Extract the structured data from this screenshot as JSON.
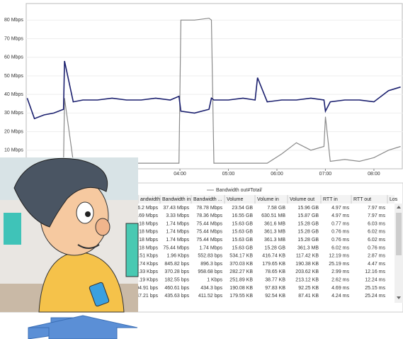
{
  "chart": {
    "ylim": [
      0,
      88.9
    ],
    "xlim": [
      0.83,
      8.6
    ],
    "yticks": [
      {
        "value": 10,
        "label": "10 Mbps"
      },
      {
        "value": 20,
        "label": "20 Mbps"
      },
      {
        "value": 30,
        "label": "30 Mbps"
      },
      {
        "value": 40,
        "label": "40 Mbps"
      },
      {
        "value": 50,
        "label": "50 Mbps"
      },
      {
        "value": 60,
        "label": "60 Mbps"
      },
      {
        "value": 70,
        "label": "70 Mbps"
      },
      {
        "value": 80,
        "label": "80 Mbps"
      }
    ],
    "xticks": [
      {
        "value": 4,
        "label": "04:00"
      },
      {
        "value": 5,
        "label": "05:00"
      },
      {
        "value": 6,
        "label": "06:00"
      },
      {
        "value": 7,
        "label": "07:00"
      },
      {
        "value": 8,
        "label": "08:00"
      }
    ],
    "x": [
      0.85,
      1.0,
      1.2,
      1.4,
      1.6,
      1.62,
      1.8,
      2.0,
      2.3,
      2.6,
      2.9,
      3.2,
      3.5,
      3.8,
      3.98,
      4.02,
      4.3,
      4.6,
      4.65,
      4.7,
      5.0,
      5.3,
      5.55,
      5.6,
      5.8,
      6.1,
      6.4,
      6.7,
      6.97,
      7.0,
      7.1,
      7.4,
      7.7,
      8.0,
      8.3,
      8.55
    ],
    "series": [
      {
        "color": "#1a1f6e",
        "values": [
          38,
          27,
          29,
          30,
          32,
          58,
          36,
          37,
          37,
          38,
          37,
          37,
          38,
          37,
          39,
          31,
          30,
          32,
          38,
          37,
          37,
          38,
          37,
          49,
          36,
          37,
          37,
          38,
          37,
          31,
          36,
          37,
          37,
          36,
          42,
          44
        ]
      },
      {
        "name": "Bandwidth out#Total/",
        "color": "#8a8a8a",
        "values": [
          2,
          2,
          3,
          3,
          3,
          38,
          4,
          3,
          3,
          3,
          3,
          3,
          3,
          3,
          3,
          80,
          80,
          81,
          80,
          3,
          3,
          3,
          3,
          3,
          3,
          8,
          14,
          10,
          12,
          28,
          4,
          5,
          4,
          6,
          10,
          12
        ]
      }
    ]
  },
  "table": {
    "columns": [
      "andwidth",
      "Bandwidth in",
      "Bandwidth ...",
      "Volume",
      "Volume in",
      "Volume out",
      "RTT in",
      "RTT out",
      "Los"
    ],
    "rows": [
      [
        "16.2 Mbps",
        "37.43 Mbps",
        "78.78 Mbps",
        "23.54 GB",
        "7.58 GB",
        "15.96 GB",
        "4.97 ms",
        "7.97 ms"
      ],
      [
        "1.69 Mbps",
        "3.33 Mbps",
        "78.36 Mbps",
        "16.55 GB",
        "630.51 MB",
        "15.87 GB",
        "4.97 ms",
        "7.97 ms"
      ],
      [
        "7.18 Mbps",
        "1.74 Mbps",
        "75.44 Mbps",
        "15.63 GB",
        "361.6 MB",
        "15.28 GB",
        "0.77 ms",
        "6.03 ms"
      ],
      [
        "7.18 Mbps",
        "1.74 Mbps",
        "75.44 Mbps",
        "15.63 GB",
        "361.3 MB",
        "15.28 GB",
        "0.76 ms",
        "6.02 ms"
      ],
      [
        "7.18 Mbps",
        "1.74 Mbps",
        "75.44 Mbps",
        "15.63 GB",
        "361.3 MB",
        "15.28 GB",
        "0.76 ms",
        "6.02 ms"
      ],
      [
        "7.18 Mbps",
        "75.44 Mbps",
        "1.74 Mbps",
        "15.63 GB",
        "15.28 GB",
        "361.3 MB",
        "6.02 ms",
        "0.76 ms"
      ],
      [
        "2.51 Kbps",
        "1.96 Kbps",
        "552.83 bps",
        "534.17 KB",
        "416.74 KB",
        "117.42 KB",
        "12.19 ms",
        "2.87 ms"
      ],
      [
        "1.74 Kbps",
        "845.82 bps",
        "896.3 bps",
        "370.03 KB",
        "179.65 KB",
        "190.38 KB",
        "25.19 ms",
        "4.47 ms"
      ],
      [
        "1.33 Kbps",
        "370.28 bps",
        "958.68 bps",
        "282.27 KB",
        "78.65 KB",
        "203.62 KB",
        "2.99 ms",
        "12.16 ms"
      ],
      [
        "1.19 Kbps",
        "182.55 bps",
        "1 Kbps",
        "251.89 KB",
        "38.77 KB",
        "213.12 KB",
        "2.62 ms",
        "12.24 ms"
      ],
      [
        "394.91 bps",
        "460.61 bps",
        "434.3 bps",
        "190.08 KB",
        "97.83 KB",
        "92.25 KB",
        "4.69 ms",
        "25.15 ms"
      ],
      [
        "347.21 bps",
        "435.63 bps",
        "411.52 bps",
        "179.55 KB",
        "92.54 KB",
        "87.41 KB",
        "4.24 ms",
        "25.24 ms"
      ]
    ]
  }
}
